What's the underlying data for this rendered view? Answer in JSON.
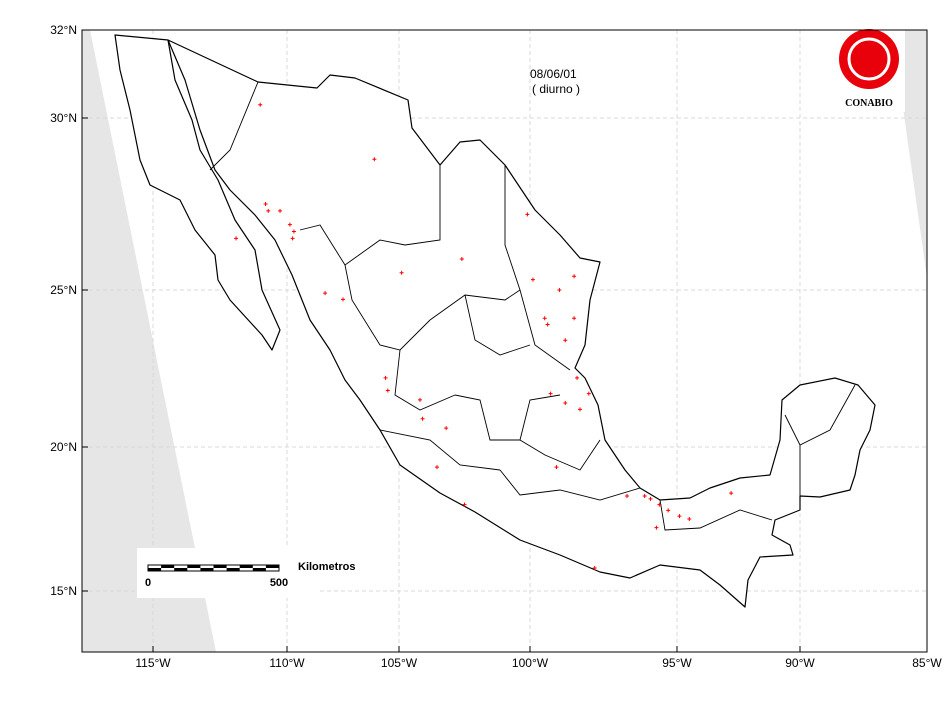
{
  "header": {
    "date": "08/06/01",
    "period": "( diurno )"
  },
  "logo": {
    "label": "CONABIO"
  },
  "scale_bar": {
    "unit": "Kilometros",
    "ticks": [
      0,
      500
    ]
  },
  "axes": {
    "xticks": [
      {
        "value": -115,
        "label": "115°W"
      },
      {
        "value": -110,
        "label": "110°W"
      },
      {
        "value": -105,
        "label": "105°W"
      },
      {
        "value": -100,
        "label": "100°W"
      },
      {
        "value": -95,
        "label": "95°W"
      },
      {
        "value": -90,
        "label": "90°W"
      },
      {
        "value": -85,
        "label": "85°W"
      }
    ],
    "yticks": [
      {
        "value": 32,
        "label": "32°N"
      },
      {
        "value": 30,
        "label": "30°N"
      },
      {
        "value": 25,
        "label": "25°N"
      },
      {
        "value": 20,
        "label": "20°N"
      },
      {
        "value": 15,
        "label": "15°N"
      }
    ],
    "grid": true
  },
  "hotspots": {
    "color": "#ff0000",
    "points": [
      [
        -111.0,
        30.3
      ],
      [
        -106.1,
        28.8
      ],
      [
        -110.8,
        27.5
      ],
      [
        -110.7,
        27.3
      ],
      [
        -110.26,
        27.3
      ],
      [
        -109.87,
        26.9
      ],
      [
        -109.69,
        26.7
      ],
      [
        -109.75,
        26.5
      ],
      [
        -111.9,
        26.5
      ],
      [
        -108.3,
        24.9
      ],
      [
        -107.5,
        24.7
      ],
      [
        -104.9,
        25.5
      ],
      [
        -102.6,
        25.9
      ],
      [
        -100.1,
        27.2
      ],
      [
        -99.9,
        25.3
      ],
      [
        -98.5,
        25.4
      ],
      [
        -99.0,
        25.0
      ],
      [
        -99.5,
        24.1
      ],
      [
        -99.4,
        23.9
      ],
      [
        -98.5,
        24.1
      ],
      [
        -98.8,
        23.4
      ],
      [
        -98.4,
        22.2
      ],
      [
        -98.0,
        21.7
      ],
      [
        -98.3,
        21.2
      ],
      [
        -98.8,
        21.4
      ],
      [
        -99.3,
        21.7
      ],
      [
        -104.2,
        21.5
      ],
      [
        -104.1,
        20.9
      ],
      [
        -103.2,
        20.6
      ],
      [
        -103.55,
        19.3
      ],
      [
        -102.5,
        18.0
      ],
      [
        -99.1,
        19.3
      ],
      [
        -97.8,
        15.8
      ],
      [
        -105.6,
        22.2
      ],
      [
        -105.5,
        21.8
      ],
      [
        -96.7,
        18.3
      ],
      [
        -96.1,
        18.3
      ],
      [
        -95.9,
        18.2
      ],
      [
        -95.6,
        18.0
      ],
      [
        -95.3,
        17.8
      ],
      [
        -94.9,
        17.6
      ],
      [
        -94.5,
        17.5
      ],
      [
        -95.7,
        17.2
      ],
      [
        -92.8,
        18.4
      ]
    ]
  }
}
